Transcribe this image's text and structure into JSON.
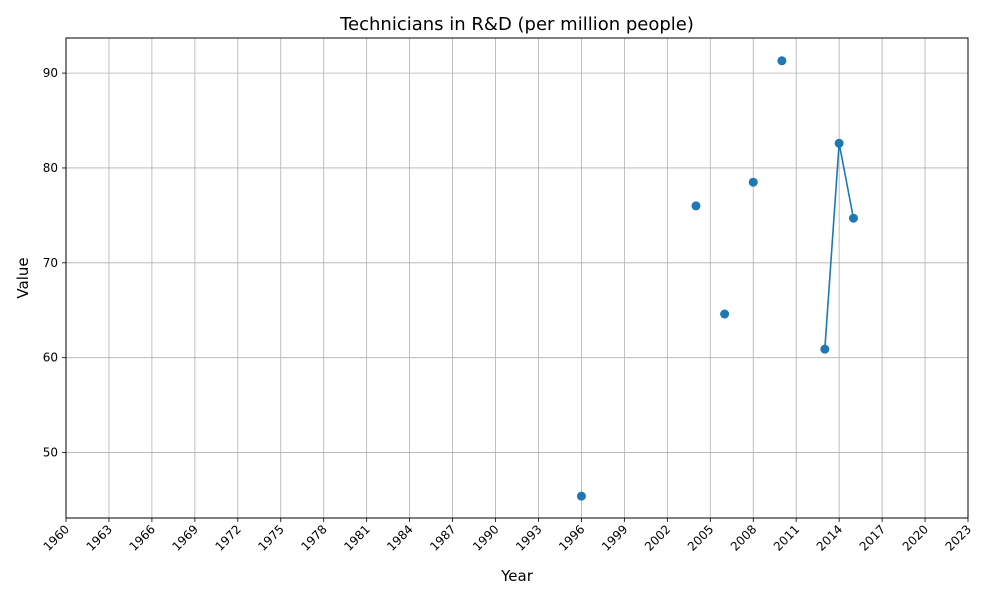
{
  "chart_data": {
    "type": "line",
    "title": "Technicians in R&D (per million people)",
    "xlabel": "Year",
    "ylabel": "Value",
    "xlim": [
      1960,
      2023
    ],
    "ylim": [
      43.1,
      93.7
    ],
    "x_ticks": [
      1960,
      1963,
      1966,
      1969,
      1972,
      1975,
      1978,
      1981,
      1984,
      1987,
      1990,
      1993,
      1996,
      1999,
      2002,
      2005,
      2008,
      2011,
      2014,
      2017,
      2020,
      2023
    ],
    "y_ticks": [
      50,
      60,
      70,
      80,
      90
    ],
    "grid": true,
    "series": [
      {
        "color": "#1f77b4",
        "points": [
          {
            "x": 1996,
            "y": 45.4
          },
          {
            "x": 2004,
            "y": 76.0
          },
          {
            "x": 2006,
            "y": 64.6
          },
          {
            "x": 2008,
            "y": 78.5
          },
          {
            "x": 2010,
            "y": 91.3
          },
          {
            "x": 2013,
            "y": 60.9
          },
          {
            "x": 2014,
            "y": 82.6
          },
          {
            "x": 2015,
            "y": 74.7
          }
        ]
      }
    ]
  }
}
